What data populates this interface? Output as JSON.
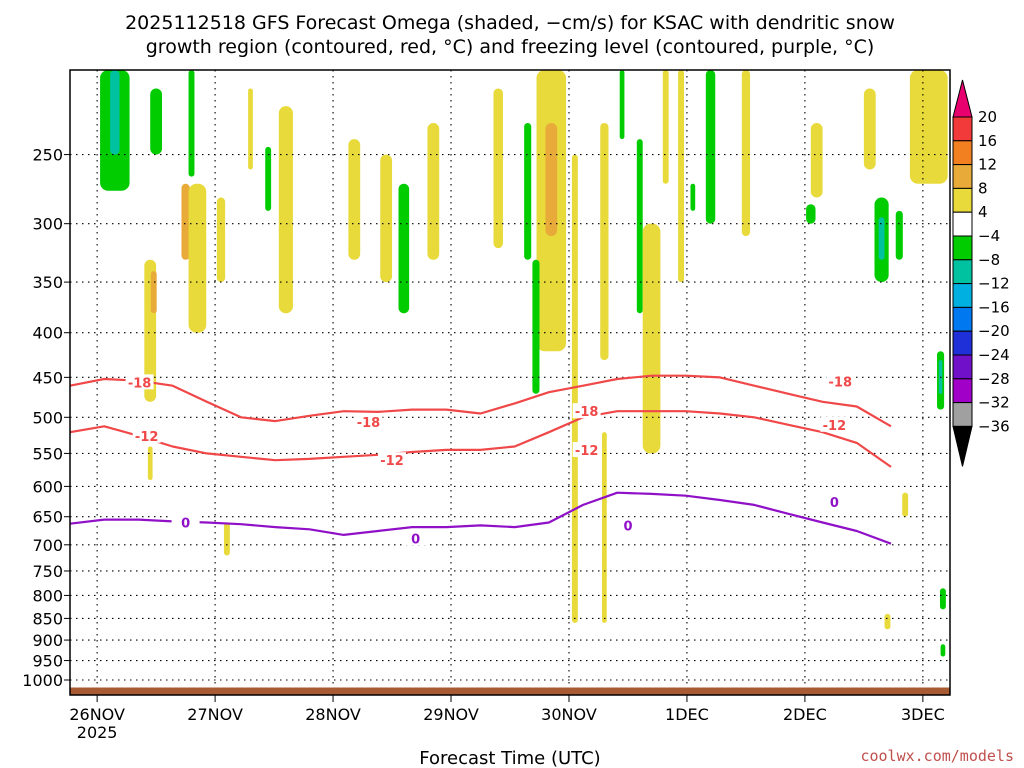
{
  "chart_data": {
    "type": "heatmap",
    "title_line1": "2025112518 GFS Forecast Omega (shaded, −cm/s) for KSAC with dendritic snow",
    "title_line2": "growth region (contoured, red, °C) and freezing level (contoured, purple, °C)",
    "xlabel": "Forecast Time (UTC)",
    "credit": "coolwx.com/models",
    "y_scale": "log (pressure, hPa)",
    "y_ticks": [
      250,
      300,
      350,
      400,
      450,
      500,
      550,
      600,
      650,
      700,
      750,
      800,
      850,
      900,
      950,
      1000
    ],
    "ylim": [
      1000,
      200
    ],
    "x_ticks": [
      {
        "label": "26NOV",
        "sub": "2025",
        "day": 0
      },
      {
        "label": "27NOV",
        "sub": "",
        "day": 1
      },
      {
        "label": "28NOV",
        "sub": "",
        "day": 2
      },
      {
        "label": "29NOV",
        "sub": "",
        "day": 3
      },
      {
        "label": "30NOV",
        "sub": "",
        "day": 4
      },
      {
        "label": "1DEC",
        "sub": "",
        "day": 5
      },
      {
        "label": "2DEC",
        "sub": "",
        "day": 6
      },
      {
        "label": "3DEC",
        "sub": "",
        "day": 7
      }
    ],
    "xlim_days": [
      -0.23,
      7.23
    ],
    "grid": true,
    "colorbar": {
      "levels": [
        "20",
        "16",
        "12",
        "8",
        "4",
        "−4",
        "−8",
        "−12",
        "−16",
        "−20",
        "−24",
        "−28",
        "−32",
        "−36"
      ],
      "colors": [
        "#e8006e",
        "#f33a3a",
        "#f28020",
        "#e8ab3a",
        "#e8da3a",
        "#ffffff",
        "#00cc00",
        "#00c2a0",
        "#00b0e0",
        "#0078f0",
        "#2030d8",
        "#7010c8",
        "#a000c8",
        "#a0a0a0",
        "#000000"
      ]
    },
    "contours": [
      {
        "label": "-18",
        "color": "#f04848",
        "pressure": [
          460,
          452,
          454,
          460,
          480,
          500,
          505,
          498,
          492,
          493,
          490,
          490,
          495,
          482,
          468,
          460,
          452,
          448,
          448,
          450,
          460,
          470,
          480,
          486,
          512
        ]
      },
      {
        "label": "-12",
        "color": "#f04848",
        "pressure": [
          520,
          512,
          525,
          540,
          550,
          555,
          560,
          558,
          555,
          552,
          548,
          545,
          545,
          540,
          520,
          500,
          492,
          492,
          492,
          495,
          500,
          510,
          520,
          535,
          570
        ]
      },
      {
        "label": "0",
        "color": "#9010c8",
        "pressure": [
          662,
          655,
          655,
          658,
          660,
          663,
          668,
          672,
          682,
          675,
          668,
          668,
          665,
          668,
          660,
          630,
          610,
          612,
          615,
          622,
          630,
          645,
          660,
          675,
          698
        ]
      }
    ],
    "contour_day_step": 0.29,
    "contour_labels": [
      {
        "text": "-18",
        "day": 0.36,
        "pressure": 456,
        "color": "#f04848"
      },
      {
        "text": "-18",
        "day": 2.3,
        "pressure": 506,
        "color": "#f04848"
      },
      {
        "text": "-18",
        "day": 4.15,
        "pressure": 492,
        "color": "#f04848"
      },
      {
        "text": "-18",
        "day": 6.3,
        "pressure": 455,
        "color": "#f04848"
      },
      {
        "text": "-12",
        "day": 0.42,
        "pressure": 525,
        "color": "#f04848"
      },
      {
        "text": "-12",
        "day": 2.5,
        "pressure": 560,
        "color": "#f04848"
      },
      {
        "text": "-12",
        "day": 4.15,
        "pressure": 545,
        "color": "#f04848"
      },
      {
        "text": "-12",
        "day": 6.25,
        "pressure": 510,
        "color": "#f04848"
      },
      {
        "text": "0",
        "day": 0.75,
        "pressure": 660,
        "color": "#9010c8"
      },
      {
        "text": "0",
        "day": 2.7,
        "pressure": 688,
        "color": "#9010c8"
      },
      {
        "text": "0",
        "day": 4.5,
        "pressure": 665,
        "color": "#9010c8"
      },
      {
        "text": "0",
        "day": 6.25,
        "pressure": 625,
        "color": "#9010c8"
      }
    ],
    "omega_blobs": [
      {
        "day": 0.15,
        "p0": 200,
        "p1": 275,
        "w": 0.25,
        "color": "#00cc00"
      },
      {
        "day": 0.15,
        "p0": 200,
        "p1": 250,
        "w": 0.08,
        "color": "#00c2a0"
      },
      {
        "day": 0.5,
        "p0": 210,
        "p1": 250,
        "w": 0.1,
        "color": "#00cc00"
      },
      {
        "day": 0.8,
        "p0": 200,
        "p1": 265,
        "w": 0.05,
        "color": "#00cc00"
      },
      {
        "day": 0.75,
        "p0": 270,
        "p1": 330,
        "w": 0.07,
        "color": "#e8ab3a"
      },
      {
        "day": 0.85,
        "p0": 270,
        "p1": 400,
        "w": 0.15,
        "color": "#e8da3a"
      },
      {
        "day": 1.05,
        "p0": 280,
        "p1": 350,
        "w": 0.07,
        "color": "#e8da3a"
      },
      {
        "day": 0.45,
        "p0": 330,
        "p1": 480,
        "w": 0.1,
        "color": "#e8da3a"
      },
      {
        "day": 0.48,
        "p0": 340,
        "p1": 380,
        "w": 0.05,
        "color": "#e8ab3a"
      },
      {
        "day": 1.3,
        "p0": 210,
        "p1": 260,
        "w": 0.04,
        "color": "#e8da3a"
      },
      {
        "day": 1.45,
        "p0": 245,
        "p1": 290,
        "w": 0.05,
        "color": "#00cc00"
      },
      {
        "day": 1.6,
        "p0": 220,
        "p1": 380,
        "w": 0.12,
        "color": "#e8da3a"
      },
      {
        "day": 2.18,
        "p0": 240,
        "p1": 330,
        "w": 0.1,
        "color": "#e8da3a"
      },
      {
        "day": 2.45,
        "p0": 250,
        "p1": 350,
        "w": 0.1,
        "color": "#e8da3a"
      },
      {
        "day": 2.6,
        "p0": 270,
        "p1": 380,
        "w": 0.09,
        "color": "#00cc00"
      },
      {
        "day": 2.85,
        "p0": 230,
        "p1": 330,
        "w": 0.1,
        "color": "#e8da3a"
      },
      {
        "day": 3.4,
        "p0": 210,
        "p1": 320,
        "w": 0.08,
        "color": "#e8da3a"
      },
      {
        "day": 3.65,
        "p0": 230,
        "p1": 330,
        "w": 0.06,
        "color": "#00cc00"
      },
      {
        "day": 3.85,
        "p0": 200,
        "p1": 420,
        "w": 0.25,
        "color": "#e8da3a"
      },
      {
        "day": 3.85,
        "p0": 230,
        "p1": 310,
        "w": 0.1,
        "color": "#e8ab3a"
      },
      {
        "day": 3.72,
        "p0": 330,
        "p1": 470,
        "w": 0.06,
        "color": "#00cc00"
      },
      {
        "day": 4.05,
        "p0": 250,
        "p1": 860,
        "w": 0.05,
        "color": "#e8da3a"
      },
      {
        "day": 4.3,
        "p0": 230,
        "p1": 430,
        "w": 0.07,
        "color": "#e8da3a"
      },
      {
        "day": 4.3,
        "p0": 520,
        "p1": 860,
        "w": 0.04,
        "color": "#e8da3a"
      },
      {
        "day": 4.45,
        "p0": 200,
        "p1": 240,
        "w": 0.04,
        "color": "#00cc00"
      },
      {
        "day": 4.6,
        "p0": 240,
        "p1": 380,
        "w": 0.05,
        "color": "#00cc00"
      },
      {
        "day": 4.7,
        "p0": 300,
        "p1": 550,
        "w": 0.15,
        "color": "#e8da3a"
      },
      {
        "day": 4.82,
        "p0": 200,
        "p1": 270,
        "w": 0.05,
        "color": "#e8da3a"
      },
      {
        "day": 4.95,
        "p0": 200,
        "p1": 350,
        "w": 0.05,
        "color": "#e8da3a"
      },
      {
        "day": 5.05,
        "p0": 270,
        "p1": 290,
        "w": 0.04,
        "color": "#00cc00"
      },
      {
        "day": 5.2,
        "p0": 200,
        "p1": 300,
        "w": 0.08,
        "color": "#00cc00"
      },
      {
        "day": 5.5,
        "p0": 200,
        "p1": 310,
        "w": 0.07,
        "color": "#e8da3a"
      },
      {
        "day": 6.1,
        "p0": 230,
        "p1": 280,
        "w": 0.1,
        "color": "#e8da3a"
      },
      {
        "day": 6.05,
        "p0": 285,
        "p1": 300,
        "w": 0.08,
        "color": "#00cc00"
      },
      {
        "day": 6.55,
        "p0": 210,
        "p1": 260,
        "w": 0.1,
        "color": "#e8da3a"
      },
      {
        "day": 6.65,
        "p0": 280,
        "p1": 350,
        "w": 0.12,
        "color": "#00cc00"
      },
      {
        "day": 6.65,
        "p0": 295,
        "p1": 330,
        "w": 0.05,
        "color": "#00c2a0"
      },
      {
        "day": 6.8,
        "p0": 290,
        "p1": 330,
        "w": 0.06,
        "color": "#00cc00"
      },
      {
        "day": 7.0,
        "p0": 200,
        "p1": 250,
        "w": 0.2,
        "color": "#e8ab3a"
      },
      {
        "day": 7.05,
        "p0": 200,
        "p1": 270,
        "w": 0.32,
        "color": "#e8da3a"
      },
      {
        "day": 7.15,
        "p0": 420,
        "p1": 490,
        "w": 0.06,
        "color": "#00cc00"
      },
      {
        "day": 7.15,
        "p0": 430,
        "p1": 470,
        "w": 0.03,
        "color": "#00c2a0"
      },
      {
        "day": 6.85,
        "p0": 610,
        "p1": 650,
        "w": 0.05,
        "color": "#e8da3a"
      },
      {
        "day": 6.7,
        "p0": 840,
        "p1": 875,
        "w": 0.05,
        "color": "#e8da3a"
      },
      {
        "day": 7.17,
        "p0": 785,
        "p1": 830,
        "w": 0.05,
        "color": "#00cc00"
      },
      {
        "day": 7.17,
        "p0": 910,
        "p1": 940,
        "w": 0.04,
        "color": "#00cc00"
      },
      {
        "day": 1.1,
        "p0": 660,
        "p1": 720,
        "w": 0.05,
        "color": "#e8da3a"
      },
      {
        "day": 0.45,
        "p0": 540,
        "p1": 590,
        "w": 0.04,
        "color": "#e8da3a"
      }
    ],
    "surface": {
      "pressure": 1020,
      "color": "#a85a32"
    }
  }
}
